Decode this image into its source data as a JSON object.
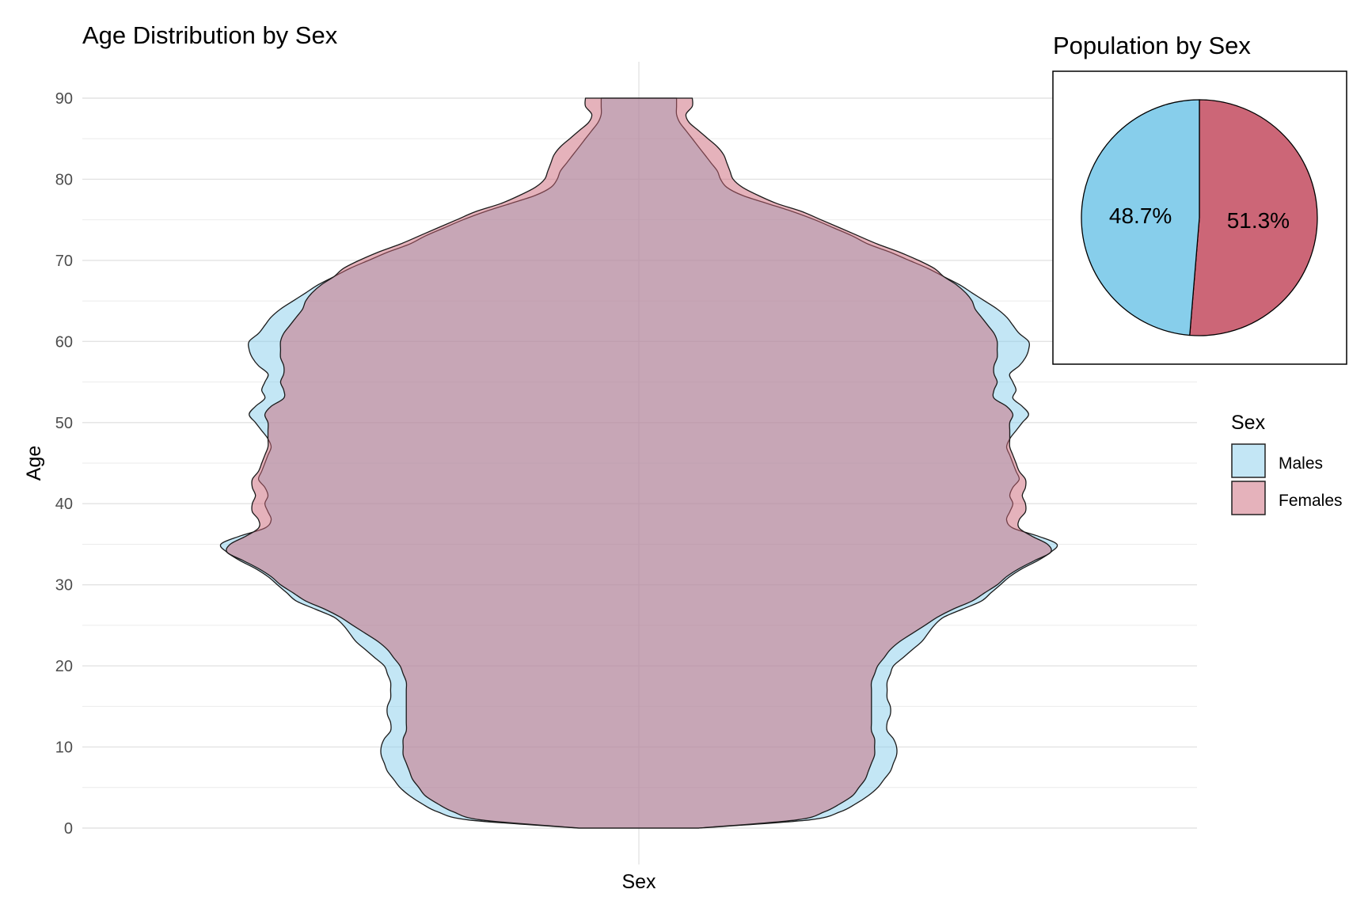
{
  "chart_data": [
    {
      "type": "area",
      "title": "Age Distribution by Sex",
      "xlabel": "Sex",
      "ylabel": "Age",
      "ylim": [
        0,
        90
      ],
      "y_ticks": [
        0,
        10,
        20,
        30,
        40,
        50,
        60,
        70,
        80,
        90
      ],
      "grid": true,
      "mirrored": true,
      "series": [
        {
          "name": "Males",
          "color": "#87CEEB",
          "age": [
            0,
            1,
            2,
            3,
            4,
            5,
            6,
            7,
            8,
            9,
            10,
            11,
            12,
            13,
            14,
            15,
            16,
            17,
            18,
            19,
            20,
            21,
            22,
            23,
            24,
            25,
            26,
            27,
            28,
            29,
            30,
            31,
            32,
            33,
            34,
            35,
            36,
            37,
            38,
            39,
            40,
            41,
            42,
            43,
            44,
            45,
            46,
            47,
            48,
            49,
            50,
            51,
            52,
            53,
            54,
            55,
            56,
            57,
            58,
            59,
            60,
            61,
            62,
            63,
            64,
            65,
            66,
            67,
            68,
            69,
            70,
            71,
            72,
            73,
            74,
            75,
            76,
            77,
            78,
            79,
            80,
            81,
            82,
            83,
            84,
            85,
            86,
            87,
            88,
            89,
            90
          ],
          "density": [
            0.19,
            0.54,
            0.64,
            0.69,
            0.73,
            0.76,
            0.78,
            0.8,
            0.81,
            0.82,
            0.82,
            0.81,
            0.79,
            0.79,
            0.8,
            0.8,
            0.79,
            0.79,
            0.79,
            0.8,
            0.81,
            0.84,
            0.87,
            0.9,
            0.92,
            0.94,
            0.97,
            1.03,
            1.09,
            1.12,
            1.15,
            1.18,
            1.22,
            1.27,
            1.31,
            1.33,
            1.27,
            1.19,
            1.17,
            1.18,
            1.19,
            1.18,
            1.19,
            1.21,
            1.2,
            1.19,
            1.18,
            1.17,
            1.18,
            1.2,
            1.22,
            1.24,
            1.22,
            1.19,
            1.2,
            1.19,
            1.18,
            1.21,
            1.23,
            1.24,
            1.24,
            1.21,
            1.19,
            1.17,
            1.14,
            1.1,
            1.06,
            1.02,
            0.97,
            0.92,
            0.86,
            0.8,
            0.73,
            0.68,
            0.62,
            0.56,
            0.49,
            0.41,
            0.33,
            0.28,
            0.26,
            0.25,
            0.23,
            0.21,
            0.19,
            0.17,
            0.15,
            0.13,
            0.12,
            0.12,
            0.12
          ]
        },
        {
          "name": "Females",
          "color": "#CC6677",
          "age": [
            0,
            1,
            2,
            3,
            4,
            5,
            6,
            7,
            8,
            9,
            10,
            11,
            12,
            13,
            14,
            15,
            16,
            17,
            18,
            19,
            20,
            21,
            22,
            23,
            24,
            25,
            26,
            27,
            28,
            29,
            30,
            31,
            32,
            33,
            34,
            35,
            36,
            37,
            38,
            39,
            40,
            41,
            42,
            43,
            44,
            45,
            46,
            47,
            48,
            49,
            50,
            51,
            52,
            53,
            54,
            55,
            56,
            57,
            58,
            59,
            60,
            61,
            62,
            63,
            64,
            65,
            66,
            67,
            68,
            69,
            70,
            71,
            72,
            73,
            74,
            75,
            76,
            77,
            78,
            79,
            80,
            81,
            82,
            83,
            84,
            85,
            86,
            87,
            88,
            89,
            90
          ],
          "density": [
            0.19,
            0.5,
            0.59,
            0.64,
            0.68,
            0.7,
            0.72,
            0.73,
            0.74,
            0.75,
            0.75,
            0.75,
            0.74,
            0.74,
            0.74,
            0.74,
            0.74,
            0.74,
            0.74,
            0.75,
            0.76,
            0.78,
            0.8,
            0.83,
            0.87,
            0.91,
            0.95,
            1.0,
            1.06,
            1.1,
            1.14,
            1.17,
            1.21,
            1.26,
            1.31,
            1.3,
            1.25,
            1.21,
            1.21,
            1.23,
            1.23,
            1.22,
            1.23,
            1.23,
            1.21,
            1.2,
            1.19,
            1.18,
            1.18,
            1.18,
            1.18,
            1.19,
            1.17,
            1.13,
            1.13,
            1.14,
            1.13,
            1.13,
            1.14,
            1.14,
            1.14,
            1.13,
            1.11,
            1.09,
            1.07,
            1.06,
            1.04,
            1.01,
            0.97,
            0.94,
            0.89,
            0.83,
            0.76,
            0.7,
            0.64,
            0.58,
            0.52,
            0.44,
            0.38,
            0.33,
            0.3,
            0.29,
            0.28,
            0.27,
            0.25,
            0.22,
            0.19,
            0.16,
            0.15,
            0.17,
            0.17
          ]
        }
      ]
    },
    {
      "type": "pie",
      "title": "Population by Sex",
      "slices": [
        {
          "name": "Males",
          "value": 48.7,
          "label": "48.7%",
          "color": "#87CEEB"
        },
        {
          "name": "Females",
          "value": 51.3,
          "label": "51.3%",
          "color": "#CC6677"
        }
      ]
    }
  ],
  "legend": {
    "title": "Sex",
    "items": [
      {
        "label": "Males",
        "color": "#87CEEB"
      },
      {
        "label": "Females",
        "color": "#CC6677"
      }
    ]
  }
}
